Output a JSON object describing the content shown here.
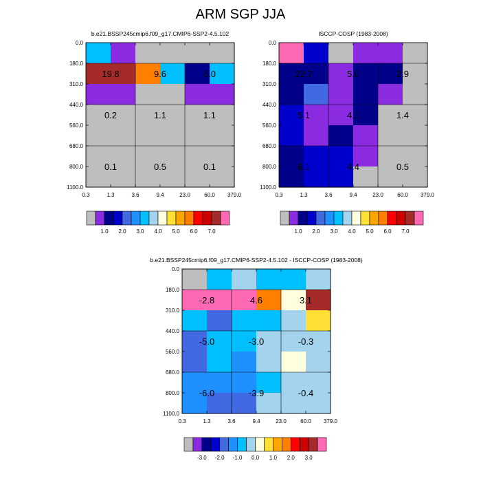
{
  "title": "ARM SGP JJA",
  "chart_data": [
    {
      "type": "heatmap",
      "title": "b.e21.BSSP245cmip6.f09_g17.CMIP6-SSP2-4.5.102",
      "x_ticks": [
        "0.3",
        "1.3",
        "3.6",
        "9.4",
        "23.0",
        "60.0",
        "379.0"
      ],
      "y_ticks": [
        "0.0",
        "180.0",
        "310.0",
        "440.0",
        "560.0",
        "680.0",
        "800.0",
        "1100.0"
      ],
      "cell_colors": [
        [
          "#00bfff",
          "#8a2be2",
          "#bebebe",
          "#bebebe",
          "#bebebe",
          "#bebebe"
        ],
        [
          "#a52a2a",
          "#a52a2a",
          "#ff7f00",
          "#00bfff",
          "#00008b",
          "#00bfff"
        ],
        [
          "#8a2be2",
          "#8a2be2",
          "#bebebe",
          "#bebebe",
          "#8a2be2",
          "#8a2be2"
        ],
        [
          "#bebebe",
          "#bebebe",
          "#bebebe",
          "#bebebe",
          "#bebebe",
          "#bebebe"
        ],
        [
          "#bebebe",
          "#bebebe",
          "#bebebe",
          "#bebebe",
          "#bebebe",
          "#bebebe"
        ],
        [
          "#bebebe",
          "#bebebe",
          "#bebebe",
          "#bebebe",
          "#bebebe",
          "#bebebe"
        ],
        [
          "#bebebe",
          "#bebebe",
          "#bebebe",
          "#bebebe",
          "#bebebe",
          "#bebebe"
        ]
      ],
      "block_labels": [
        [
          "19.8",
          "9.6",
          "6.0"
        ],
        [
          "0.2",
          "1.1",
          "1.1"
        ],
        [
          "0.1",
          "0.5",
          "0.1"
        ]
      ],
      "colorbar": {
        "colors": [
          "#bebebe",
          "#8a2be2",
          "#00008b",
          "#0000cd",
          "#4169e1",
          "#1e90ff",
          "#00bfff",
          "#a4d3ee",
          "#ffffe0",
          "#ffe135",
          "#ffa500",
          "#ff7f00",
          "#ff0000",
          "#cd0000",
          "#a52a2a",
          "#ff69b4"
        ],
        "labels": [
          "1.0",
          "2.0",
          "3.0",
          "4.0",
          "5.0",
          "6.0",
          "7.0"
        ]
      }
    },
    {
      "type": "heatmap",
      "title": "ISCCP-COSP (1983-2008)",
      "x_ticks": [
        "0.3",
        "1.3",
        "3.6",
        "9.4",
        "23.0",
        "60.0",
        "379.0"
      ],
      "y_ticks": [
        "0.0",
        "180.0",
        "310.0",
        "440.0",
        "560.0",
        "680.0",
        "800.0",
        "1100.0"
      ],
      "cell_colors": [
        [
          "#ff69b4",
          "#0000cd",
          "#bebebe",
          "#8a2be2",
          "#8a2be2",
          "#bebebe"
        ],
        [
          "#00008b",
          "#00008b",
          "#8a2be2",
          "#00008b",
          "#00008b",
          "#bebebe"
        ],
        [
          "#00008b",
          "#4169e1",
          "#8a2be2",
          "#00008b",
          "#8a2be2",
          "#bebebe"
        ],
        [
          "#0000cd",
          "#8a2be2",
          "#8a2be2",
          "#00008b",
          "#bebebe",
          "#bebebe"
        ],
        [
          "#0000cd",
          "#8a2be2",
          "#00008b",
          "#8a2be2",
          "#bebebe",
          "#bebebe"
        ],
        [
          "#00008b",
          "#0000cd",
          "#0000cd",
          "#8a2be2",
          "#bebebe",
          "#bebebe"
        ],
        [
          "#00008b",
          "#0000cd",
          "#0000cd",
          "#bebebe",
          "#bebebe",
          "#bebebe"
        ]
      ],
      "block_labels": [
        [
          "22.7",
          "5.0",
          "2.9"
        ],
        [
          "5.1",
          "4.1",
          "1.4"
        ],
        [
          "6.1",
          "4.4",
          "0.5"
        ]
      ],
      "colorbar": {
        "colors": [
          "#bebebe",
          "#8a2be2",
          "#00008b",
          "#0000cd",
          "#4169e1",
          "#1e90ff",
          "#00bfff",
          "#a4d3ee",
          "#ffffe0",
          "#ffe135",
          "#ffa500",
          "#ff7f00",
          "#ff0000",
          "#cd0000",
          "#a52a2a",
          "#ff69b4"
        ],
        "labels": [
          "1.0",
          "2.0",
          "3.0",
          "4.0",
          "5.0",
          "6.0",
          "7.0"
        ]
      }
    },
    {
      "type": "heatmap",
      "title": "b.e21.BSSP245cmip6.f09_g17.CMIP6-SSP2-4.5.102 - ISCCP-COSP (1983-2008)",
      "x_ticks": [
        "0.3",
        "1.3",
        "3.6",
        "9.4",
        "23.0",
        "60.0",
        "379.0"
      ],
      "y_ticks": [
        "0.0",
        "180.0",
        "310.0",
        "440.0",
        "560.0",
        "680.0",
        "800.0",
        "1100.0"
      ],
      "cell_colors": [
        [
          "#bebebe",
          "#00bfff",
          "#a4d3ee",
          "#00bfff",
          "#00bfff",
          "#a4d3ee"
        ],
        [
          "#ff69b4",
          "#ff69b4",
          "#ff69b4",
          "#ff7f00",
          "#ffffe0",
          "#a52a2a"
        ],
        [
          "#00bfff",
          "#4169e1",
          "#00bfff",
          "#00bfff",
          "#a4d3ee",
          "#ffe135"
        ],
        [
          "#4169e1",
          "#00bfff",
          "#00bfff",
          "#a4d3ee",
          "#a4d3ee",
          "#a4d3ee"
        ],
        [
          "#4169e1",
          "#00bfff",
          "#1e90ff",
          "#a4d3ee",
          "#ffffe0",
          "#a4d3ee"
        ],
        [
          "#1e90ff",
          "#1e90ff",
          "#1e90ff",
          "#00bfff",
          "#a4d3ee",
          "#a4d3ee"
        ],
        [
          "#1e90ff",
          "#4169e1",
          "#4169e1",
          "#a4d3ee",
          "#a4d3ee",
          "#a4d3ee"
        ]
      ],
      "block_labels": [
        [
          "-2.8",
          "4.6",
          "3.1"
        ],
        [
          "-5.0",
          "-3.0",
          "-0.3"
        ],
        [
          "-6.0",
          "-3.9",
          "-0.4"
        ]
      ],
      "colorbar": {
        "colors": [
          "#bebebe",
          "#8a2be2",
          "#00008b",
          "#0000cd",
          "#4169e1",
          "#1e90ff",
          "#00bfff",
          "#a4d3ee",
          "#ffffe0",
          "#ffe135",
          "#ffa500",
          "#ff7f00",
          "#ff0000",
          "#cd0000",
          "#a52a2a",
          "#ff69b4"
        ],
        "labels": [
          "-3.0",
          "-2.0",
          "-1.0",
          "0.0",
          "1.0",
          "2.0",
          "3.0"
        ]
      }
    }
  ]
}
